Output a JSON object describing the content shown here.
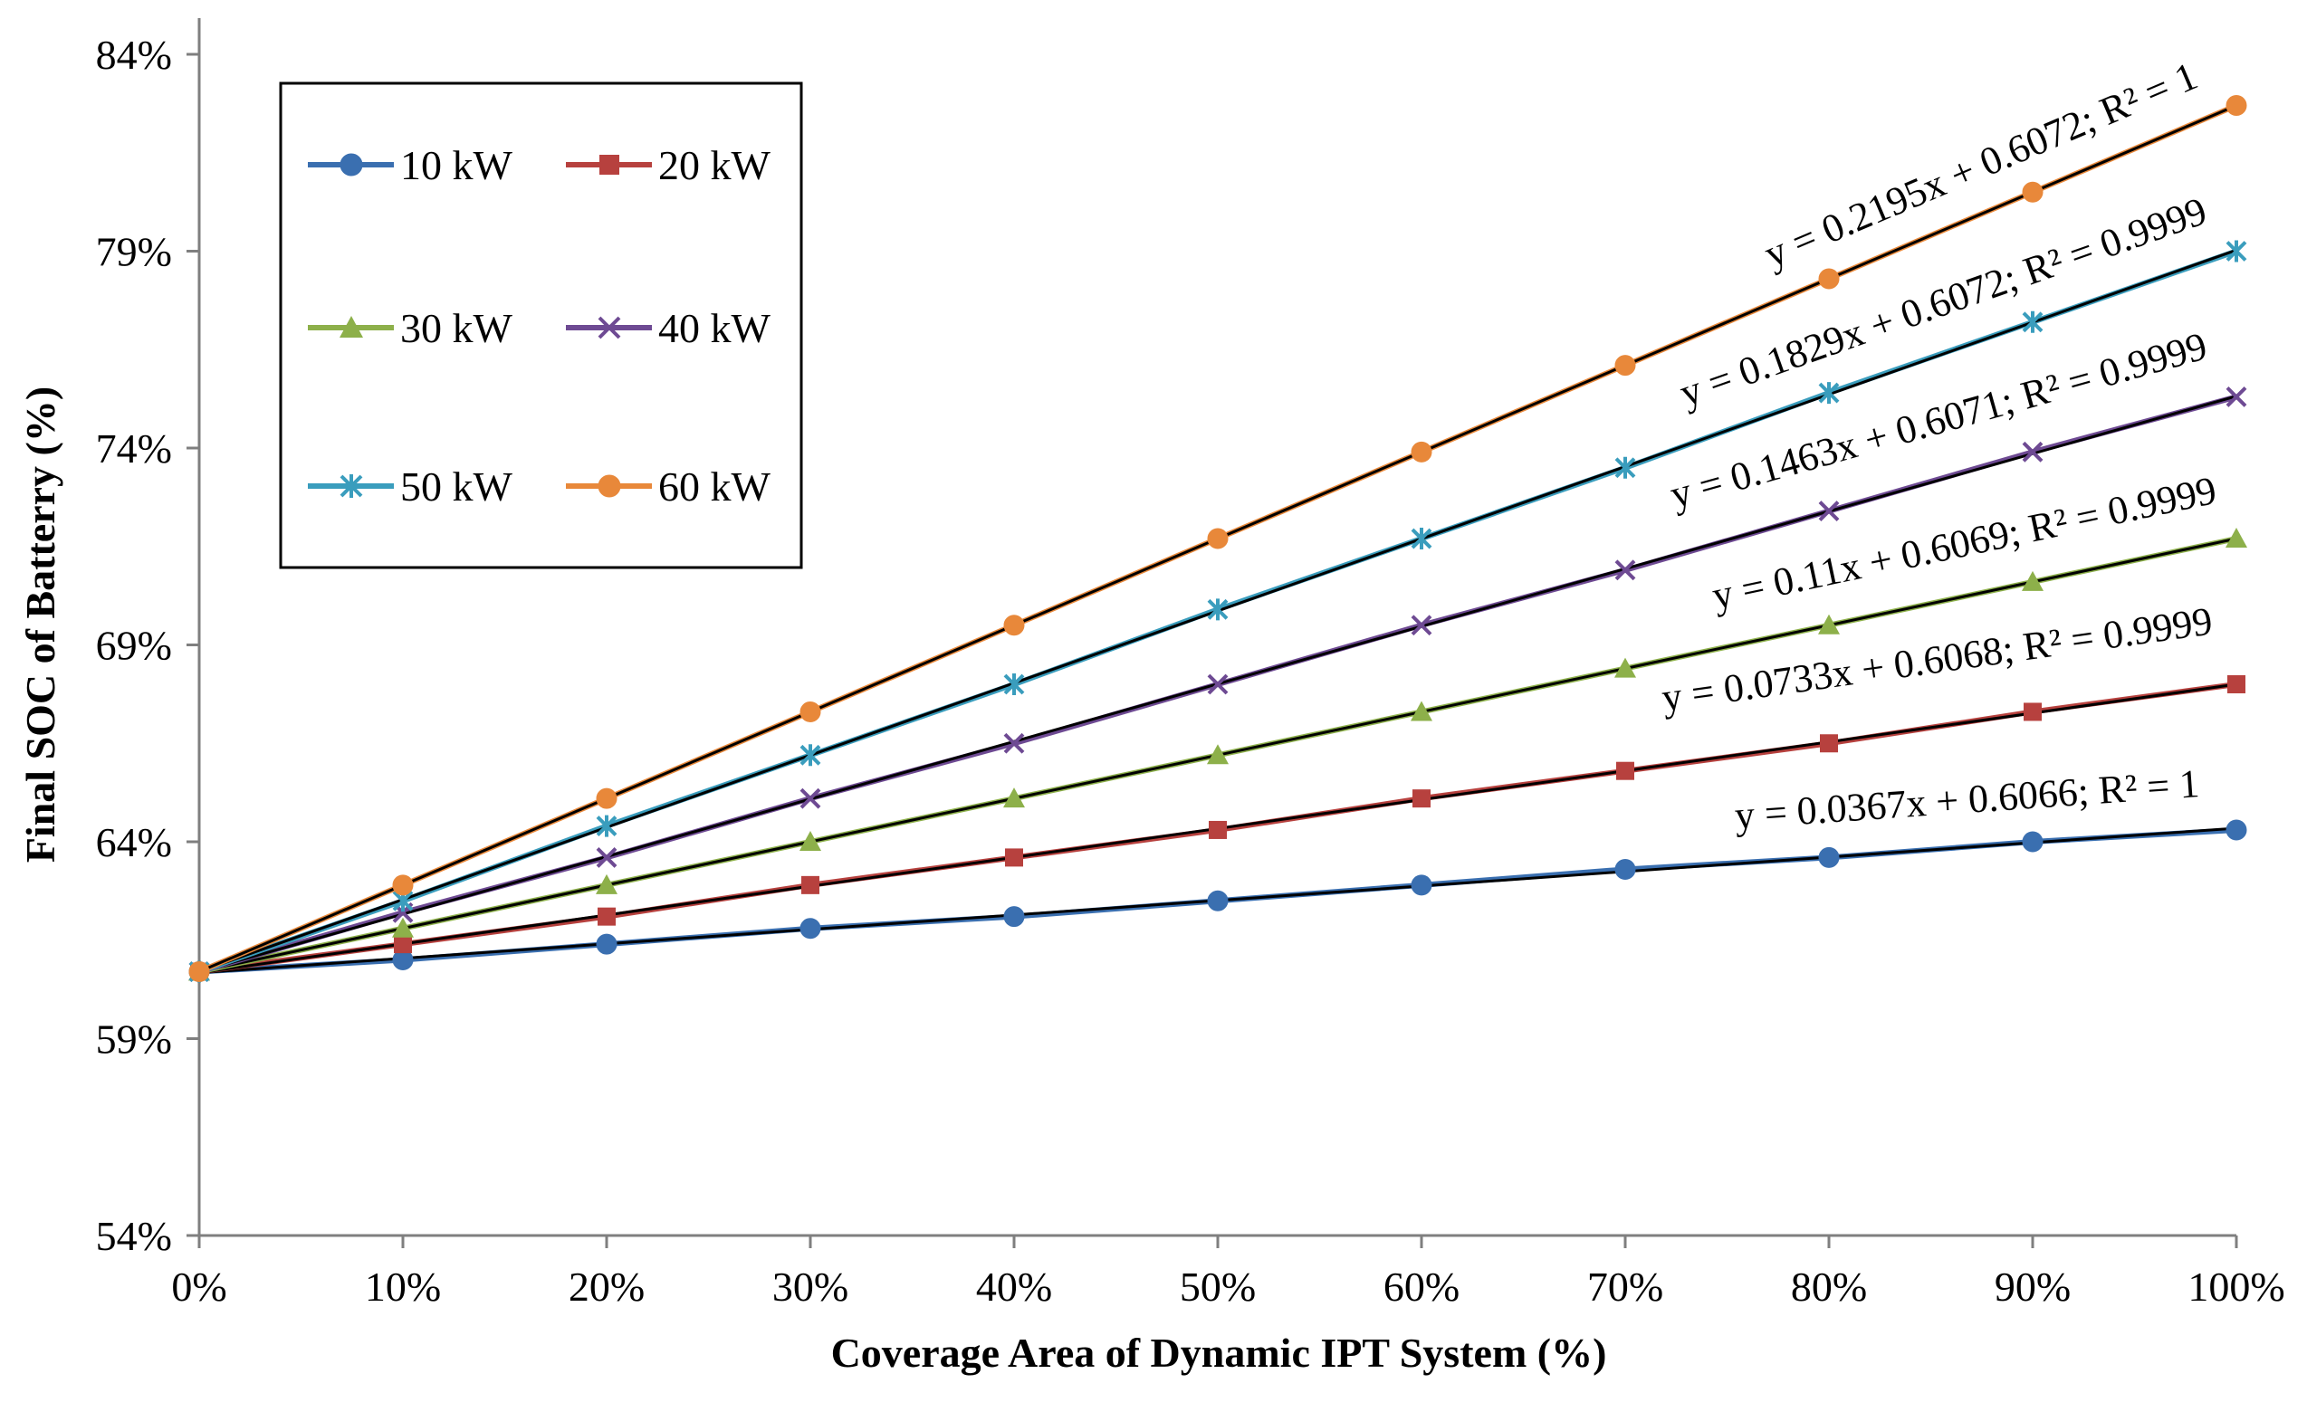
{
  "chart_data": {
    "type": "line",
    "title": "",
    "xlabel": "Coverage Area of Dynamic IPT System (%)",
    "ylabel": "Final SOC of Batterry (%)",
    "x": [
      0,
      10,
      20,
      30,
      40,
      50,
      60,
      70,
      80,
      90,
      100
    ],
    "x_tick_labels": [
      "0%",
      "10%",
      "20%",
      "30%",
      "40%",
      "50%",
      "60%",
      "70%",
      "80%",
      "90%",
      "100%"
    ],
    "xlim": [
      0,
      100
    ],
    "ylim": [
      54,
      84
    ],
    "y_ticks": [
      54,
      59,
      64,
      69,
      74,
      79,
      84
    ],
    "y_tick_labels": [
      "54%",
      "59%",
      "64%",
      "69%",
      "74%",
      "79%",
      "84%"
    ],
    "grid": false,
    "legend_position": "top-left",
    "series": [
      {
        "name": "10 kW",
        "color": "#3a6fb0",
        "marker": "circle",
        "values": [
          60.7,
          61.0,
          61.4,
          61.8,
          62.1,
          62.5,
          62.9,
          63.3,
          63.6,
          64.0,
          64.3
        ],
        "trendline": "y = 0.0367x + 0.6066; R² = 1"
      },
      {
        "name": "20 kW",
        "color": "#b7413e",
        "marker": "square",
        "values": [
          60.7,
          61.4,
          62.1,
          62.9,
          63.6,
          64.3,
          65.1,
          65.8,
          66.5,
          67.3,
          68.0
        ],
        "trendline": "y = 0.0733x + 0.6068; R² = 0.9999"
      },
      {
        "name": "30 kW",
        "color": "#8db04a",
        "marker": "triangle",
        "values": [
          60.7,
          61.8,
          62.9,
          64.0,
          65.1,
          66.2,
          67.3,
          68.4,
          69.5,
          70.6,
          71.7
        ],
        "trendline": "y = 0.11x + 0.6069; R² = 0.9999"
      },
      {
        "name": "40 kW",
        "color": "#6e4a93",
        "marker": "x",
        "values": [
          60.7,
          62.2,
          63.6,
          65.1,
          66.5,
          68.0,
          69.5,
          70.9,
          72.4,
          73.9,
          75.3
        ],
        "trendline": "y = 0.1463x + 0.6071; R² = 0.9999"
      },
      {
        "name": "50 kW",
        "color": "#3a9dbd",
        "marker": "star",
        "values": [
          60.7,
          62.5,
          64.4,
          66.2,
          68.0,
          69.9,
          71.7,
          73.5,
          75.4,
          77.2,
          79.0
        ],
        "trendline": "y = 0.1829x + 0.6072; R² = 0.9999"
      },
      {
        "name": "60 kW",
        "color": "#e8883a",
        "marker": "circle",
        "values": [
          60.7,
          62.9,
          65.1,
          67.3,
          69.5,
          71.7,
          73.9,
          76.1,
          78.3,
          80.5,
          82.7
        ],
        "trendline": "y = 0.2195x + 0.6072; R² = 1"
      }
    ]
  }
}
